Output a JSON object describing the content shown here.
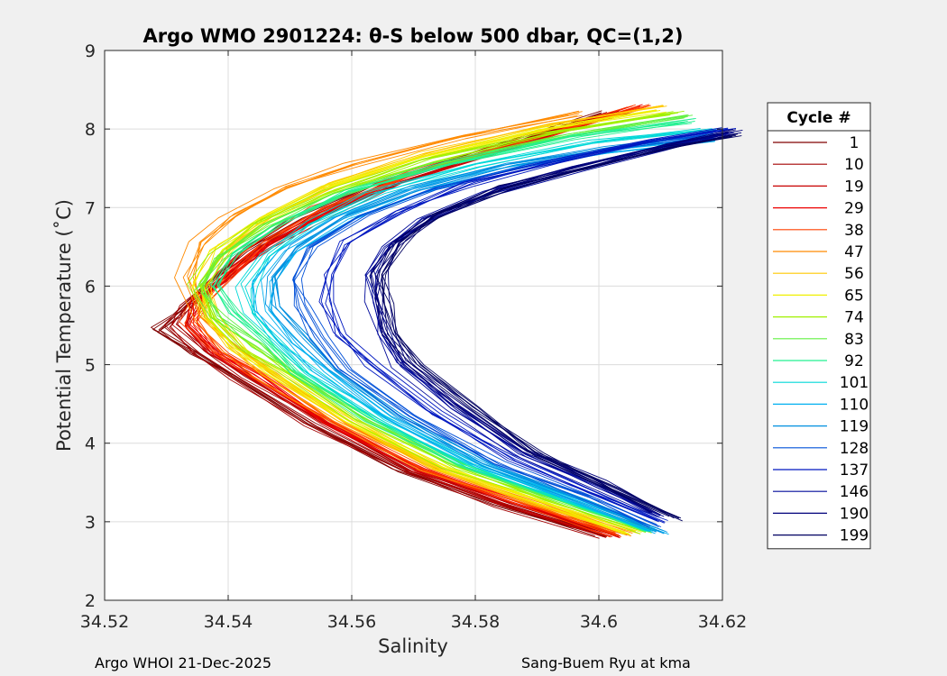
{
  "chart_data": {
    "type": "line",
    "title": "Argo WMO 2901224: θ-S below 500 dbar,  QC=(1,2)",
    "xlabel": "Salinity",
    "ylabel": "Potential Temperature (˚C)",
    "xlim": [
      34.52,
      34.62
    ],
    "ylim": [
      2,
      9
    ],
    "xticks": [
      34.52,
      34.54,
      34.56,
      34.58,
      34.6,
      34.62
    ],
    "xtick_labels": [
      "34.52",
      "34.54",
      "34.56",
      "34.58",
      "34.6",
      "34.62"
    ],
    "yticks": [
      2,
      3,
      4,
      5,
      6,
      7,
      8,
      9
    ],
    "ytick_labels": [
      "2",
      "3",
      "4",
      "5",
      "6",
      "7",
      "8",
      "9"
    ],
    "grid": true,
    "legend": {
      "title": "Cycle #",
      "placement": "right-outside",
      "entries": [
        "1",
        "10",
        "19",
        "29",
        "38",
        "47",
        "56",
        "65",
        "74",
        "83",
        "92",
        "101",
        "110",
        "119",
        "128",
        "137",
        "146",
        "190",
        "199"
      ]
    },
    "series": [
      {
        "name": "1",
        "color": "#800000",
        "points": [
          [
            34.601,
            2.82
          ],
          [
            34.584,
            3.22
          ],
          [
            34.568,
            3.65
          ],
          [
            34.553,
            4.25
          ],
          [
            34.541,
            4.85
          ],
          [
            34.535,
            5.15
          ],
          [
            34.529,
            5.45
          ],
          [
            34.532,
            5.65
          ],
          [
            34.537,
            6.0
          ],
          [
            34.543,
            6.45
          ],
          [
            34.552,
            6.85
          ],
          [
            34.565,
            7.3
          ],
          [
            34.583,
            7.75
          ],
          [
            34.601,
            8.2
          ]
        ]
      },
      {
        "name": "10",
        "color": "#a30000",
        "points": [
          [
            34.602,
            2.82
          ],
          [
            34.585,
            3.22
          ],
          [
            34.569,
            3.65
          ],
          [
            34.554,
            4.25
          ],
          [
            34.542,
            4.85
          ],
          [
            34.536,
            5.15
          ],
          [
            34.531,
            5.5
          ],
          [
            34.533,
            5.75
          ],
          [
            34.538,
            6.05
          ],
          [
            34.545,
            6.5
          ],
          [
            34.554,
            6.9
          ],
          [
            34.567,
            7.35
          ],
          [
            34.585,
            7.8
          ],
          [
            34.603,
            8.22
          ]
        ]
      },
      {
        "name": "19",
        "color": "#c80000",
        "points": [
          [
            34.602,
            2.83
          ],
          [
            34.586,
            3.22
          ],
          [
            34.57,
            3.66
          ],
          [
            34.555,
            4.26
          ],
          [
            34.543,
            4.86
          ],
          [
            34.537,
            5.15
          ],
          [
            34.533,
            5.5
          ],
          [
            34.534,
            5.8
          ],
          [
            34.539,
            6.1
          ],
          [
            34.546,
            6.5
          ],
          [
            34.555,
            6.9
          ],
          [
            34.568,
            7.35
          ],
          [
            34.587,
            7.8
          ],
          [
            34.605,
            8.25
          ]
        ]
      },
      {
        "name": "29",
        "color": "#ed0000",
        "points": [
          [
            34.603,
            2.83
          ],
          [
            34.587,
            3.23
          ],
          [
            34.571,
            3.66
          ],
          [
            34.556,
            4.26
          ],
          [
            34.544,
            4.86
          ],
          [
            34.538,
            5.15
          ],
          [
            34.534,
            5.5
          ],
          [
            34.535,
            5.85
          ],
          [
            34.54,
            6.15
          ],
          [
            34.547,
            6.55
          ],
          [
            34.556,
            6.95
          ],
          [
            34.569,
            7.4
          ],
          [
            34.588,
            7.85
          ],
          [
            34.606,
            8.28
          ]
        ]
      },
      {
        "name": "38",
        "color": "#ff4000",
        "points": [
          [
            34.603,
            2.84
          ],
          [
            34.588,
            3.23
          ],
          [
            34.572,
            3.67
          ],
          [
            34.557,
            4.27
          ],
          [
            34.545,
            4.87
          ],
          [
            34.539,
            5.15
          ],
          [
            34.534,
            5.55
          ],
          [
            34.536,
            5.85
          ],
          [
            34.54,
            6.2
          ],
          [
            34.546,
            6.6
          ],
          [
            34.555,
            7.0
          ],
          [
            34.57,
            7.45
          ],
          [
            34.59,
            7.9
          ],
          [
            34.607,
            8.3
          ]
        ]
      },
      {
        "name": "47",
        "color": "#ff8a00",
        "points": [
          [
            34.604,
            2.85
          ],
          [
            34.589,
            3.24
          ],
          [
            34.573,
            3.67
          ],
          [
            34.558,
            4.27
          ],
          [
            34.546,
            4.87
          ],
          [
            34.54,
            5.2
          ],
          [
            34.535,
            5.6
          ],
          [
            34.533,
            6.1
          ],
          [
            34.535,
            6.55
          ],
          [
            34.54,
            6.9
          ],
          [
            34.548,
            7.25
          ],
          [
            34.56,
            7.55
          ],
          [
            34.578,
            7.9
          ],
          [
            34.596,
            8.2
          ]
        ]
      },
      {
        "name": "56",
        "color": "#ffc800",
        "points": [
          [
            34.605,
            2.86
          ],
          [
            34.59,
            3.24
          ],
          [
            34.574,
            3.68
          ],
          [
            34.559,
            4.28
          ],
          [
            34.547,
            4.88
          ],
          [
            34.541,
            5.2
          ],
          [
            34.537,
            5.6
          ],
          [
            34.536,
            6.05
          ],
          [
            34.54,
            6.5
          ],
          [
            34.547,
            6.9
          ],
          [
            34.557,
            7.3
          ],
          [
            34.572,
            7.7
          ],
          [
            34.592,
            8.05
          ],
          [
            34.61,
            8.3
          ]
        ]
      },
      {
        "name": "65",
        "color": "#f0f000",
        "points": [
          [
            34.606,
            2.86
          ],
          [
            34.591,
            3.25
          ],
          [
            34.575,
            3.68
          ],
          [
            34.56,
            4.28
          ],
          [
            34.548,
            4.88
          ],
          [
            34.542,
            5.2
          ],
          [
            34.537,
            5.6
          ],
          [
            34.536,
            6.0
          ],
          [
            34.539,
            6.45
          ],
          [
            34.546,
            6.85
          ],
          [
            34.557,
            7.25
          ],
          [
            34.572,
            7.65
          ],
          [
            34.592,
            8.0
          ],
          [
            34.61,
            8.25
          ]
        ]
      },
      {
        "name": "74",
        "color": "#a0f000",
        "points": [
          [
            34.607,
            2.87
          ],
          [
            34.592,
            3.26
          ],
          [
            34.576,
            3.69
          ],
          [
            34.561,
            4.29
          ],
          [
            34.549,
            4.89
          ],
          [
            34.543,
            5.2
          ],
          [
            34.537,
            5.6
          ],
          [
            34.535,
            6.0
          ],
          [
            34.538,
            6.4
          ],
          [
            34.545,
            6.8
          ],
          [
            34.556,
            7.2
          ],
          [
            34.572,
            7.6
          ],
          [
            34.592,
            7.95
          ],
          [
            34.612,
            8.2
          ]
        ]
      },
      {
        "name": "83",
        "color": "#60f040",
        "points": [
          [
            34.607,
            2.88
          ],
          [
            34.593,
            3.27
          ],
          [
            34.577,
            3.7
          ],
          [
            34.562,
            4.3
          ],
          [
            34.55,
            4.9
          ],
          [
            34.544,
            5.25
          ],
          [
            34.538,
            5.6
          ],
          [
            34.535,
            5.95
          ],
          [
            34.538,
            6.35
          ],
          [
            34.546,
            6.75
          ],
          [
            34.557,
            7.15
          ],
          [
            34.573,
            7.55
          ],
          [
            34.594,
            7.9
          ],
          [
            34.614,
            8.15
          ]
        ]
      },
      {
        "name": "92",
        "color": "#20f090",
        "points": [
          [
            34.608,
            2.89
          ],
          [
            34.594,
            3.28
          ],
          [
            34.578,
            3.71
          ],
          [
            34.563,
            4.31
          ],
          [
            34.551,
            4.91
          ],
          [
            34.546,
            5.3
          ],
          [
            34.541,
            5.65
          ],
          [
            34.538,
            6.0
          ],
          [
            34.541,
            6.4
          ],
          [
            34.549,
            6.8
          ],
          [
            34.56,
            7.2
          ],
          [
            34.576,
            7.55
          ],
          [
            34.596,
            7.9
          ],
          [
            34.615,
            8.1
          ]
        ]
      },
      {
        "name": "101",
        "color": "#00d8d8",
        "points": [
          [
            34.609,
            2.9
          ],
          [
            34.595,
            3.29
          ],
          [
            34.58,
            3.72
          ],
          [
            34.565,
            4.32
          ],
          [
            34.553,
            4.92
          ],
          [
            34.548,
            5.3
          ],
          [
            34.544,
            5.65
          ],
          [
            34.543,
            6.0
          ],
          [
            34.546,
            6.4
          ],
          [
            34.553,
            6.8
          ],
          [
            34.564,
            7.2
          ],
          [
            34.58,
            7.55
          ],
          [
            34.6,
            7.85
          ],
          [
            34.618,
            8.0
          ]
        ]
      },
      {
        "name": "110",
        "color": "#00b0f0",
        "points": [
          [
            34.61,
            2.86
          ],
          [
            34.596,
            3.28
          ],
          [
            34.581,
            3.72
          ],
          [
            34.566,
            4.32
          ],
          [
            34.555,
            4.92
          ],
          [
            34.55,
            5.3
          ],
          [
            34.546,
            5.7
          ],
          [
            34.546,
            6.05
          ],
          [
            34.55,
            6.45
          ],
          [
            34.558,
            6.85
          ],
          [
            34.57,
            7.2
          ],
          [
            34.585,
            7.5
          ],
          [
            34.6,
            7.7
          ],
          [
            34.617,
            7.85
          ]
        ]
      },
      {
        "name": "119",
        "color": "#0090e0",
        "points": [
          [
            34.61,
            2.87
          ],
          [
            34.597,
            3.29
          ],
          [
            34.582,
            3.73
          ],
          [
            34.568,
            4.33
          ],
          [
            34.557,
            4.93
          ],
          [
            34.552,
            5.35
          ],
          [
            34.548,
            5.75
          ],
          [
            34.547,
            6.1
          ],
          [
            34.551,
            6.5
          ],
          [
            34.559,
            6.9
          ],
          [
            34.571,
            7.25
          ],
          [
            34.586,
            7.55
          ],
          [
            34.602,
            7.75
          ],
          [
            34.618,
            7.9
          ]
        ]
      },
      {
        "name": "128",
        "color": "#0050d8",
        "points": [
          [
            34.609,
            2.95
          ],
          [
            34.598,
            3.32
          ],
          [
            34.584,
            3.75
          ],
          [
            34.57,
            4.35
          ],
          [
            34.559,
            4.95
          ],
          [
            34.555,
            5.35
          ],
          [
            34.552,
            5.75
          ],
          [
            34.551,
            6.1
          ],
          [
            34.554,
            6.5
          ],
          [
            34.562,
            6.9
          ],
          [
            34.574,
            7.25
          ],
          [
            34.589,
            7.55
          ],
          [
            34.605,
            7.8
          ],
          [
            34.619,
            7.95
          ]
        ]
      },
      {
        "name": "137",
        "color": "#0018c0",
        "points": [
          [
            34.61,
            3.0
          ],
          [
            34.599,
            3.37
          ],
          [
            34.586,
            3.8
          ],
          [
            34.573,
            4.4
          ],
          [
            34.563,
            5.0
          ],
          [
            34.558,
            5.4
          ],
          [
            34.556,
            5.8
          ],
          [
            34.556,
            6.15
          ],
          [
            34.559,
            6.55
          ],
          [
            34.567,
            6.95
          ],
          [
            34.579,
            7.3
          ],
          [
            34.594,
            7.6
          ],
          [
            34.608,
            7.85
          ],
          [
            34.621,
            8.0
          ]
        ]
      },
      {
        "name": "146",
        "color": "#000a9a",
        "points": [
          [
            34.61,
            3.08
          ],
          [
            34.6,
            3.45
          ],
          [
            34.588,
            3.86
          ],
          [
            34.577,
            4.45
          ],
          [
            34.568,
            5.0
          ],
          [
            34.565,
            5.4
          ],
          [
            34.564,
            5.8
          ],
          [
            34.563,
            6.15
          ],
          [
            34.566,
            6.5
          ],
          [
            34.572,
            6.85
          ],
          [
            34.583,
            7.2
          ],
          [
            34.597,
            7.5
          ],
          [
            34.61,
            7.75
          ],
          [
            34.622,
            7.95
          ]
        ]
      },
      {
        "name": "190",
        "color": "#00007a",
        "points": [
          [
            34.61,
            3.12
          ],
          [
            34.601,
            3.5
          ],
          [
            34.589,
            3.92
          ],
          [
            34.578,
            4.5
          ],
          [
            34.569,
            5.05
          ],
          [
            34.566,
            5.45
          ],
          [
            34.565,
            5.85
          ],
          [
            34.565,
            6.2
          ],
          [
            34.568,
            6.55
          ],
          [
            34.574,
            6.9
          ],
          [
            34.584,
            7.25
          ],
          [
            34.598,
            7.55
          ],
          [
            34.611,
            7.8
          ],
          [
            34.623,
            7.98
          ]
        ]
      },
      {
        "name": "199",
        "color": "#000060",
        "points": [
          [
            34.612,
            3.05
          ],
          [
            34.602,
            3.42
          ],
          [
            34.59,
            3.85
          ],
          [
            34.579,
            4.45
          ],
          [
            34.57,
            5.0
          ],
          [
            34.566,
            5.4
          ],
          [
            34.565,
            5.8
          ],
          [
            34.564,
            6.15
          ],
          [
            34.567,
            6.55
          ],
          [
            34.573,
            6.9
          ],
          [
            34.584,
            7.25
          ],
          [
            34.597,
            7.5
          ],
          [
            34.61,
            7.75
          ],
          [
            34.622,
            7.92
          ]
        ]
      }
    ]
  },
  "footer": {
    "left": "Argo WHOI 21-Dec-2025",
    "right": "Sang-Buem Ryu at kma"
  }
}
